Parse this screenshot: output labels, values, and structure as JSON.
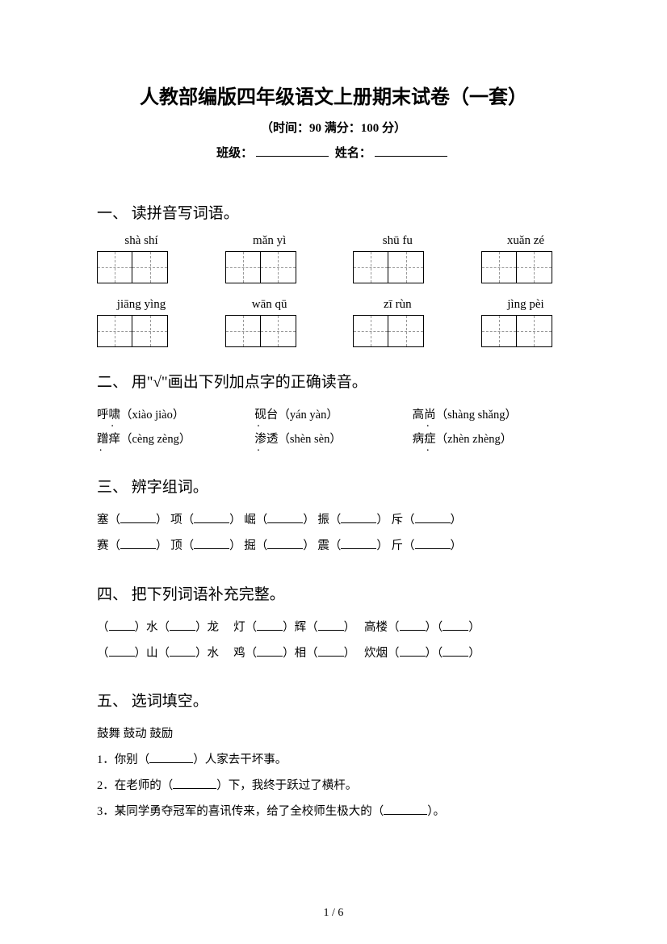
{
  "title": "人教部编版四年级语文上册期末试卷（一套）",
  "subtitle": "（时间：90   满分：100 分）",
  "class_label": "班级：",
  "name_label": "姓名：",
  "sections": {
    "s1": {
      "head": "一、 读拼音写词语。",
      "row1": [
        "shà shí",
        "mǎn yì",
        "shū fu",
        "xuǎn zé"
      ],
      "row2": [
        "jiāng yìng",
        "wān qū",
        "zī rùn",
        "jìng pèi"
      ]
    },
    "s2": {
      "head": "二、 用\"√\"画出下列加点字的正确读音。",
      "r1c1_a": "呼",
      "r1c1_b": "啸",
      "r1c1_p": "（xiào jiào）",
      "r1c2_a": "砚",
      "r1c2_b": "台",
      "r1c2_p": "（yán yàn）",
      "r1c3_a": "高",
      "r1c3_b": "尚",
      "r1c3_p": "（shàng shǎng）",
      "r2c1_a": "蹭",
      "r2c1_b": "痒",
      "r2c1_p": "（cèng zèng）",
      "r2c2_a": "渗",
      "r2c2_b": "透",
      "r2c2_p": "（shèn sèn）",
      "r2c3_a": "病",
      "r2c3_b": "症",
      "r2c3_p": "（zhèn zhèng）"
    },
    "s3": {
      "head": "三、 辨字组词。",
      "l1": [
        "塞",
        "项",
        "崛",
        "振",
        "斥"
      ],
      "l2": [
        "赛",
        "顶",
        "掘",
        "震",
        "斤"
      ]
    },
    "s4": {
      "head": "四、 把下列词语补充完整。",
      "l1_1a": "水",
      "l1_1b": "龙",
      "l1_2a": "灯",
      "l1_2b": "辉",
      "l1_3a": "高楼",
      "l2_1a": "山",
      "l2_1b": "水",
      "l2_2a": "鸡",
      "l2_2b": "相",
      "l2_3a": "炊烟"
    },
    "s5": {
      "head": "五、 选词填空。",
      "words": "鼓舞     鼓动     鼓励",
      "q1": "1．你别（",
      "q1b": "）人家去干坏事。",
      "q2": "2．在老师的（",
      "q2b": "）下，我终于跃过了横杆。",
      "q3": "3．某同学勇夺冠军的喜讯传来，给了全校师生极大的（",
      "q3b": "）。"
    }
  },
  "page_num": "1 / 6"
}
